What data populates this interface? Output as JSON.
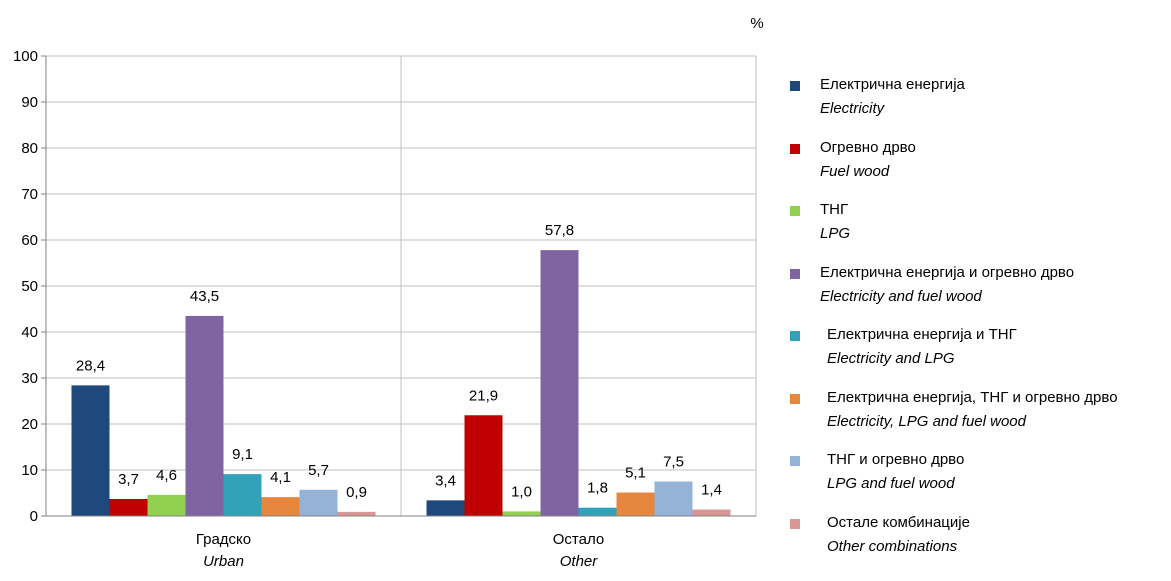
{
  "chart_data": {
    "type": "bar",
    "unit_label": "%",
    "ylim": [
      0,
      100
    ],
    "yticks": [
      0,
      10,
      20,
      30,
      40,
      50,
      60,
      70,
      80,
      90,
      100
    ],
    "grid": true,
    "legend_position": "right",
    "categories": [
      {
        "label": "Градско",
        "label_en": "Urban"
      },
      {
        "label": "Остало",
        "label_en": "Other"
      }
    ],
    "series": [
      {
        "name": "Електрична енергија",
        "name_en": "Electricity",
        "color": "#1f497d",
        "values": [
          28.4,
          3.4
        ],
        "labels": [
          "28,4",
          "3,4"
        ]
      },
      {
        "name": "Огревно дрво",
        "name_en": "Fuel wood",
        "color": "#c00000",
        "values": [
          3.7,
          21.9
        ],
        "labels": [
          "3,7",
          "21,9"
        ]
      },
      {
        "name": "ТНГ",
        "name_en": "LPG",
        "color": "#92d050",
        "values": [
          4.6,
          1.0
        ],
        "labels": [
          "4,6",
          "1,0"
        ]
      },
      {
        "name": "Електрична енергија и огревно дрво",
        "name_en": "Electricity and fuel wood",
        "color": "#8064a2",
        "values": [
          43.5,
          57.8
        ],
        "labels": [
          "43,5",
          "57,8"
        ]
      },
      {
        "name": "Електрична енергија и ТНГ",
        "name_en": "Electricity and LPG",
        "color": "#31a2b8",
        "values": [
          9.1,
          1.8
        ],
        "labels": [
          "9,1",
          "1,8"
        ]
      },
      {
        "name": "Електрична енергија, ТНГ и огревно дрво",
        "name_en": "Electricity, LPG and fuel wood",
        "color": "#e6873d",
        "values": [
          4.1,
          5.1
        ],
        "labels": [
          "4,1",
          "5,1"
        ]
      },
      {
        "name": "ТНГ и огревно дрво",
        "name_en": "LPG and fuel wood",
        "color": "#95b3d7",
        "values": [
          5.7,
          7.5
        ],
        "labels": [
          "5,7",
          "7,5"
        ]
      },
      {
        "name": "Остале комбинације",
        "name_en": "Other combinations",
        "color": "#d99694",
        "values": [
          0.9,
          1.4
        ],
        "labels": [
          "0,9",
          "1,4"
        ]
      }
    ]
  }
}
